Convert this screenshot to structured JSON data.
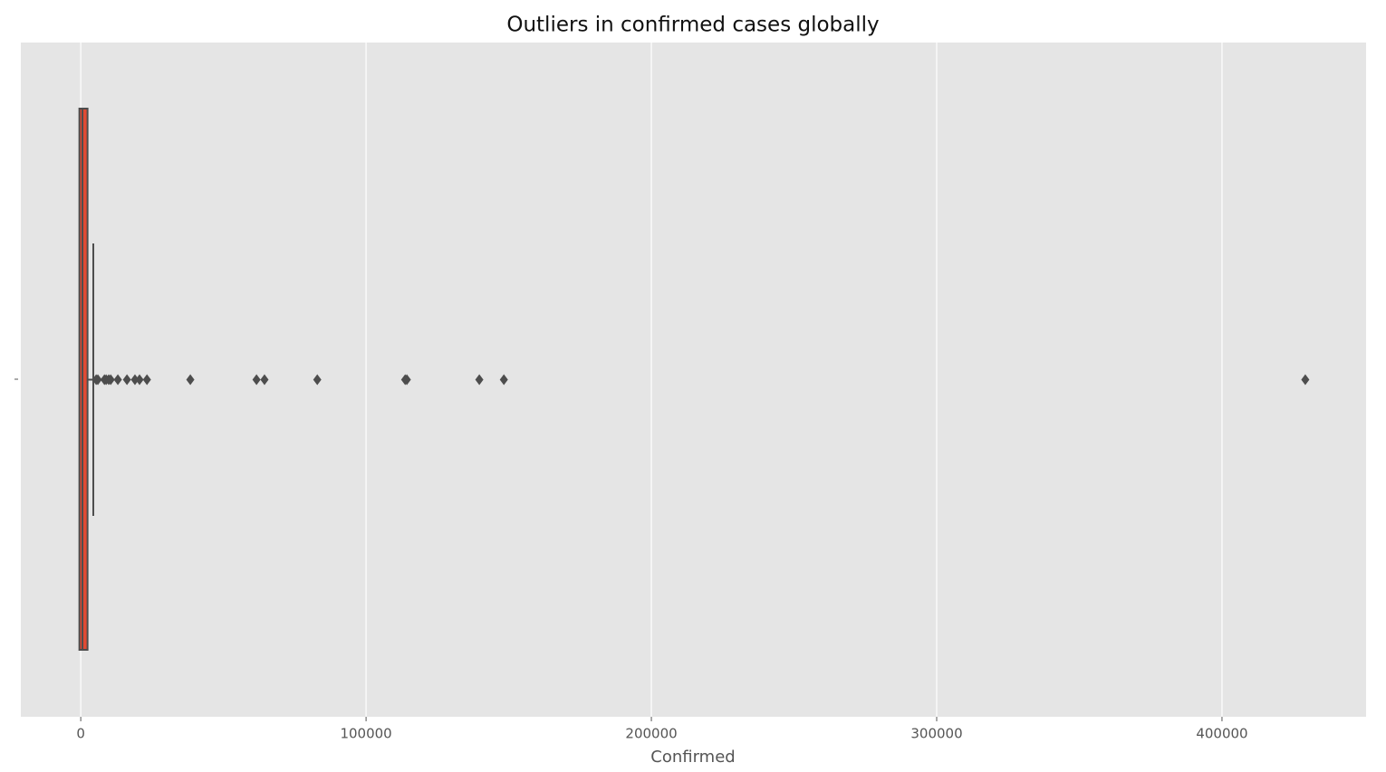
{
  "chart_data": {
    "type": "box",
    "title": "Outliers in confirmed cases globally",
    "xlabel": "Confirmed",
    "color": "#e24a33",
    "q1": 0,
    "median": 600,
    "q3": 1900,
    "whislo": 0,
    "whishi": 4400,
    "fliers": [
      5400,
      6000,
      8300,
      8900,
      9800,
      10500,
      13000,
      16200,
      19000,
      20600,
      23200,
      38400,
      61600,
      64400,
      82900,
      113700,
      114300,
      139700,
      148300,
      429200
    ],
    "xlim": [
      -21000,
      450500
    ],
    "xticks": [
      0,
      100000,
      200000,
      300000,
      400000
    ],
    "grid": true
  }
}
